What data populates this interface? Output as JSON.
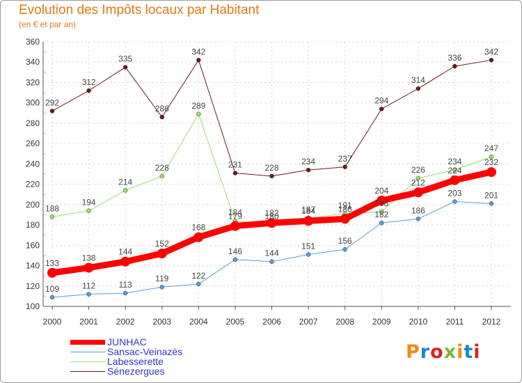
{
  "header": {
    "title": "Evolution des Impôts locaux par Habitant",
    "subtitle": "(en € et par an)"
  },
  "chart_data": {
    "type": "line",
    "title": "Evolution des Impôts locaux par Habitant",
    "subtitle": "(en € et par an)",
    "xlabel": "",
    "ylabel": "",
    "x": [
      "2000",
      "2001",
      "2002",
      "2003",
      "2004",
      "2005",
      "2006",
      "2007",
      "2008",
      "2009",
      "2010",
      "2011",
      "2012"
    ],
    "ylim": [
      100,
      360
    ],
    "yticks": [
      "100",
      "120",
      "140",
      "160",
      "180",
      "200",
      "220",
      "240",
      "260",
      "280",
      "300",
      "320",
      "340",
      "360"
    ],
    "grid": true,
    "series": [
      {
        "name": "JUNHAC",
        "color": "#ff0000",
        "values": [
          133,
          138,
          144,
          152,
          168,
          179,
          182,
          184,
          186,
          204,
          212,
          224,
          232
        ]
      },
      {
        "name": "Sansac-Veinazès",
        "color": "#5b9bd5",
        "values": [
          109,
          112,
          113,
          119,
          122,
          146,
          144,
          151,
          156,
          182,
          186,
          203,
          201
        ]
      },
      {
        "name": "Labesserette",
        "color": "#99dd66",
        "values": [
          188,
          194,
          214,
          228,
          289,
          184,
          180,
          187,
          191,
          193,
          226,
          234,
          247
        ]
      },
      {
        "name": "Sénezergues",
        "color": "#6b1a1a",
        "values": [
          292,
          312,
          335,
          286,
          342,
          231,
          228,
          234,
          237,
          294,
          314,
          336,
          342
        ]
      }
    ]
  },
  "brand": {
    "text": "Proxiti",
    "colors": [
      "#f08a12",
      "#1a86d0",
      "#e02020",
      "#7ab82b"
    ]
  }
}
